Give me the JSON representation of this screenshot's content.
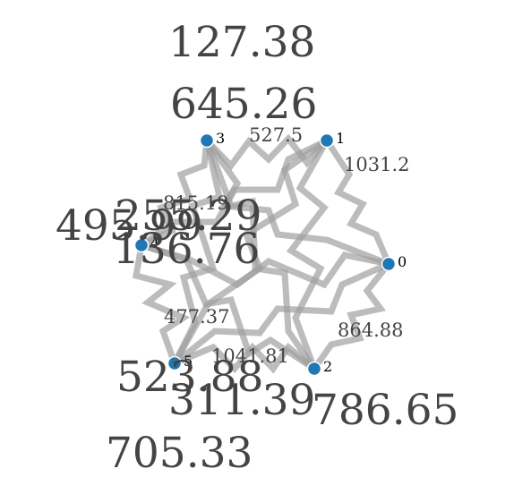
{
  "graph": {
    "nodes": [
      {
        "id": "0",
        "label": "0"
      },
      {
        "id": "1",
        "label": "1"
      },
      {
        "id": "2",
        "label": "2"
      },
      {
        "id": "3",
        "label": "3"
      },
      {
        "id": "4",
        "label": "4"
      },
      {
        "id": "5",
        "label": "5"
      }
    ],
    "node_color": "#1f77b4",
    "edge_color": "#a0a0a0",
    "edge_labels": [
      "527.5",
      "1031.2",
      "815.19",
      "477.37",
      "864.88",
      "1041.81"
    ],
    "large_labels": [
      "127.38",
      "645.26",
      "255.29",
      "495.99",
      "136.76",
      "523.88",
      "311.39",
      "786.65",
      "705.33"
    ]
  }
}
